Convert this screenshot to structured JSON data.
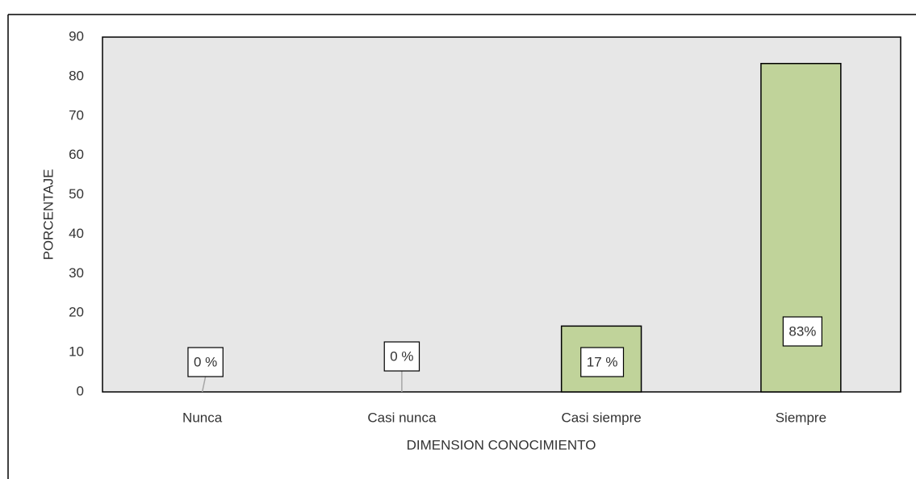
{
  "chart_data": {
    "type": "bar",
    "categories": [
      "Nunca",
      "Casi nunca",
      "Casi siempre",
      "Siempre"
    ],
    "values": [
      0,
      0,
      16.7,
      83.3
    ],
    "value_labels": [
      "0 %",
      "0 %",
      "17 %",
      "83%"
    ],
    "color": "#c0d39a",
    "x_label": "DIMENSION CONOCIMIENTO",
    "y_label": "PORCENTAJE",
    "ylim": [
      0,
      90
    ],
    "yticks": [
      0,
      10,
      20,
      30,
      40,
      50,
      60,
      70,
      80,
      90
    ],
    "grid": false
  }
}
